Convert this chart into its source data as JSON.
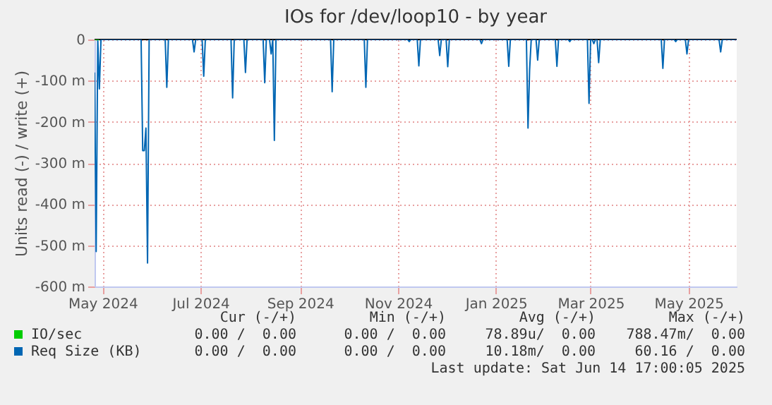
{
  "chart_data": {
    "type": "line",
    "title": "IOs for /dev/loop10 - by year",
    "ylabel": "Units read (-) / write (+)",
    "xlim": [
      "2024-05-10",
      "2025-06-14"
    ],
    "xticks": [
      {
        "value": "2024-05-15",
        "label": "May 2024"
      },
      {
        "value": "2024-07-15",
        "label": "Jul 2024"
      },
      {
        "value": "2024-09-15",
        "label": "Sep 2024"
      },
      {
        "value": "2024-11-15",
        "label": "Nov 2024"
      },
      {
        "value": "2025-01-15",
        "label": "Jan 2025"
      },
      {
        "value": "2025-03-15",
        "label": "Mar 2025"
      },
      {
        "value": "2025-05-15",
        "label": "May 2025"
      }
    ],
    "ylim": [
      -600,
      0
    ],
    "yticks": [
      {
        "value": -600,
        "label": "-600 m"
      },
      {
        "value": -500,
        "label": "-500 m"
      },
      {
        "value": -400,
        "label": "-400 m"
      },
      {
        "value": -300,
        "label": "-300 m"
      },
      {
        "value": -200,
        "label": "-200 m"
      },
      {
        "value": -100,
        "label": "-100 m"
      },
      0
    ],
    "grid": true,
    "legend": "bottom",
    "ref_lines": [
      {
        "axis": "y",
        "value": 0,
        "color": "#000000"
      }
    ],
    "series": [
      {
        "name": "IO/sec",
        "color": "#00cc00",
        "x": [
          "2024-05-10",
          "2024-05-13"
        ],
        "values": [
          0,
          0
        ]
      },
      {
        "name": "Req Size (KB)",
        "color": "#0066b3",
        "x": [
          "2024-05-10",
          "2024-05-11",
          "2024-05-12",
          "2024-05-13",
          "2024-05-14",
          "2024-06-08",
          "2024-06-09",
          "2024-06-10",
          "2024-06-11",
          "2024-06-12",
          "2024-06-13",
          "2024-06-23",
          "2024-06-24",
          "2024-06-25",
          "2024-07-10",
          "2024-07-11",
          "2024-07-12",
          "2024-07-16",
          "2024-07-17",
          "2024-07-18",
          "2024-08-03",
          "2024-08-04",
          "2024-08-05",
          "2024-08-11",
          "2024-08-12",
          "2024-08-13",
          "2024-08-23",
          "2024-08-24",
          "2024-08-25",
          "2024-08-27",
          "2024-08-28",
          "2024-08-29",
          "2024-08-30",
          "2024-08-31",
          "2024-10-04",
          "2024-10-05",
          "2024-10-06",
          "2024-10-25",
          "2024-10-26",
          "2024-10-27",
          "2024-11-21",
          "2024-11-22",
          "2024-11-23",
          "2024-11-27",
          "2024-11-28",
          "2024-11-29",
          "2024-12-10",
          "2024-12-11",
          "2024-12-12",
          "2024-12-15",
          "2024-12-16",
          "2024-12-17",
          "2025-01-05",
          "2025-01-06",
          "2025-01-07",
          "2025-01-22",
          "2025-01-23",
          "2025-01-24",
          "2025-02-03",
          "2025-02-04",
          "2025-02-05",
          "2025-02-06",
          "2025-02-09",
          "2025-02-10",
          "2025-02-11",
          "2025-02-21",
          "2025-02-22",
          "2025-02-23",
          "2025-03-01",
          "2025-03-02",
          "2025-03-03",
          "2025-03-13",
          "2025-03-14",
          "2025-03-15",
          "2025-03-16",
          "2025-03-17",
          "2025-03-18",
          "2025-03-19",
          "2025-03-20",
          "2025-03-21",
          "2025-04-28",
          "2025-04-29",
          "2025-04-30",
          "2025-05-06",
          "2025-05-07",
          "2025-05-08",
          "2025-05-13",
          "2025-05-14",
          "2025-05-15",
          "2025-06-03",
          "2025-06-04",
          "2025-06-05",
          "2025-06-14"
        ],
        "values": [
          -80,
          -515,
          0,
          -120,
          0,
          0,
          -270,
          -270,
          -215,
          -543,
          0,
          0,
          -116,
          0,
          0,
          -30,
          0,
          0,
          -89,
          0,
          0,
          -142,
          0,
          0,
          -80,
          0,
          0,
          -105,
          0,
          0,
          -35,
          0,
          -245,
          0,
          0,
          -127,
          0,
          0,
          -116,
          0,
          0,
          -5,
          0,
          0,
          -64,
          0,
          0,
          -39,
          0,
          0,
          -66,
          0,
          0,
          -10,
          0,
          0,
          -65,
          0,
          0,
          -215,
          -73,
          0,
          0,
          -50,
          0,
          0,
          -65,
          0,
          0,
          -5,
          0,
          0,
          -155,
          0,
          0,
          -10,
          0,
          0,
          -56,
          0,
          0,
          -70,
          0,
          0,
          -5,
          0,
          0,
          -35,
          0,
          0,
          -30,
          0,
          0
        ]
      }
    ],
    "annotations": [
      "Cur (-/+)",
      "Min (-/+)",
      "Avg (-/+)",
      "Max (-/+)",
      "0.00 /  0.00",
      "0.00 /  0.00",
      "78.89u/  0.00",
      "788.47m/  0.00",
      "0.00 /  0.00",
      "0.00 /  0.00",
      "10.18m/  0.00",
      "60.16 /  0.00",
      "Last update: Sat Jun 14 17:00:05 2025"
    ]
  }
}
